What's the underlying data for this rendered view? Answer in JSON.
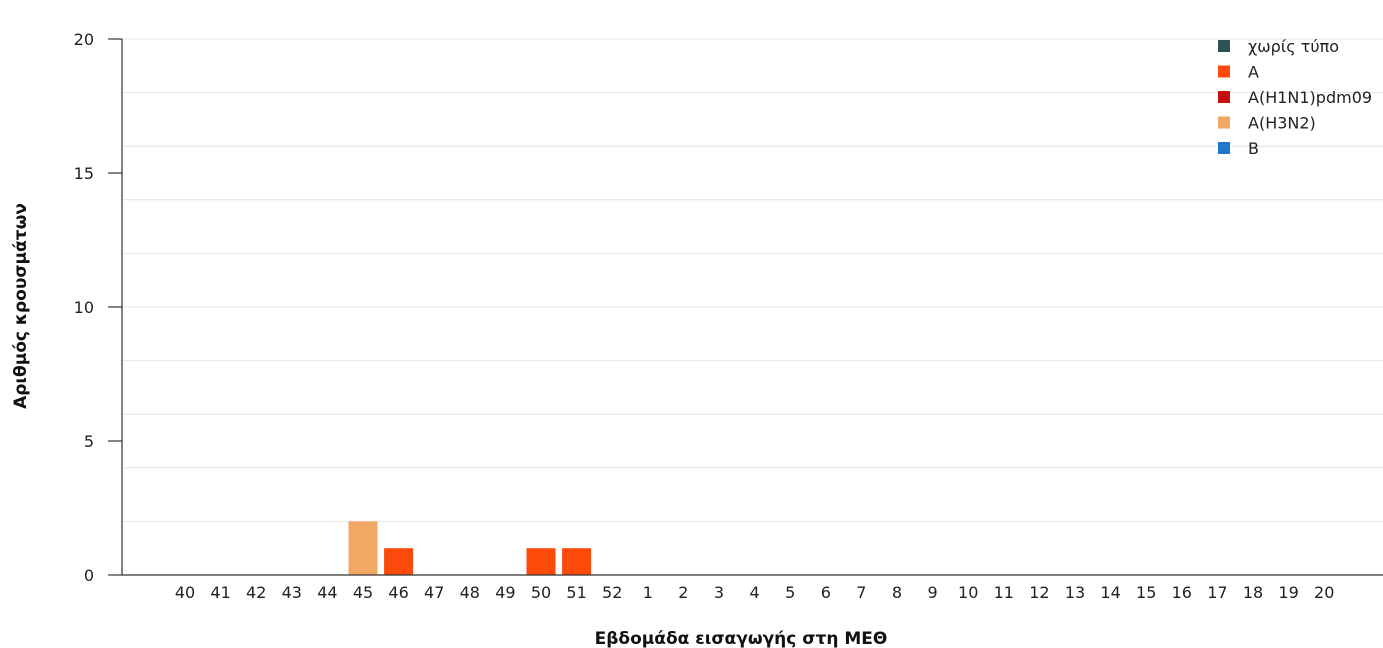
{
  "chart_data": {
    "type": "bar",
    "xlabel": "Εβδομάδα εισαγωγής στη ΜΕΘ",
    "ylabel": "Αριθμός κρουσμάτων",
    "ylim": [
      0,
      20
    ],
    "yticks": [
      0,
      5,
      10,
      15,
      20
    ],
    "grid": true,
    "legend_position": "top-right",
    "stacked": true,
    "categories": [
      "40",
      "41",
      "42",
      "43",
      "44",
      "45",
      "46",
      "47",
      "48",
      "49",
      "50",
      "51",
      "52",
      "1",
      "2",
      "3",
      "4",
      "5",
      "6",
      "7",
      "8",
      "9",
      "10",
      "11",
      "12",
      "13",
      "14",
      "15",
      "16",
      "17",
      "18",
      "19",
      "20"
    ],
    "series": [
      {
        "name": "χωρίς τύπο",
        "color": "#2f5355",
        "values": [
          0,
          0,
          0,
          0,
          0,
          0,
          0,
          0,
          0,
          0,
          0,
          0,
          0,
          0,
          0,
          0,
          0,
          0,
          0,
          0,
          0,
          0,
          0,
          0,
          0,
          0,
          0,
          0,
          0,
          0,
          0,
          0,
          0
        ]
      },
      {
        "name": "A",
        "color": "#fc4a0a",
        "values": [
          0,
          0,
          0,
          0,
          0,
          0,
          1,
          0,
          0,
          0,
          1,
          1,
          0,
          0,
          0,
          0,
          0,
          0,
          0,
          0,
          0,
          0,
          0,
          0,
          0,
          0,
          0,
          0,
          0,
          0,
          0,
          0,
          0
        ]
      },
      {
        "name": "A(H1N1)pdm09",
        "color": "#c50f0f",
        "values": [
          0,
          0,
          0,
          0,
          0,
          0,
          0,
          0,
          0,
          0,
          0,
          0,
          0,
          0,
          0,
          0,
          0,
          0,
          0,
          0,
          0,
          0,
          0,
          0,
          0,
          0,
          0,
          0,
          0,
          0,
          0,
          0,
          0
        ]
      },
      {
        "name": "A(H3N2)",
        "color": "#f2a765",
        "values": [
          0,
          0,
          0,
          0,
          0,
          2,
          0,
          0,
          0,
          0,
          0,
          0,
          0,
          0,
          0,
          0,
          0,
          0,
          0,
          0,
          0,
          0,
          0,
          0,
          0,
          0,
          0,
          0,
          0,
          0,
          0,
          0,
          0
        ]
      },
      {
        "name": "B",
        "color": "#1f77c9",
        "values": [
          0,
          0,
          0,
          0,
          0,
          0,
          0,
          0,
          0,
          0,
          0,
          0,
          0,
          0,
          0,
          0,
          0,
          0,
          0,
          0,
          0,
          0,
          0,
          0,
          0,
          0,
          0,
          0,
          0,
          0,
          0,
          0,
          0
        ]
      }
    ]
  }
}
